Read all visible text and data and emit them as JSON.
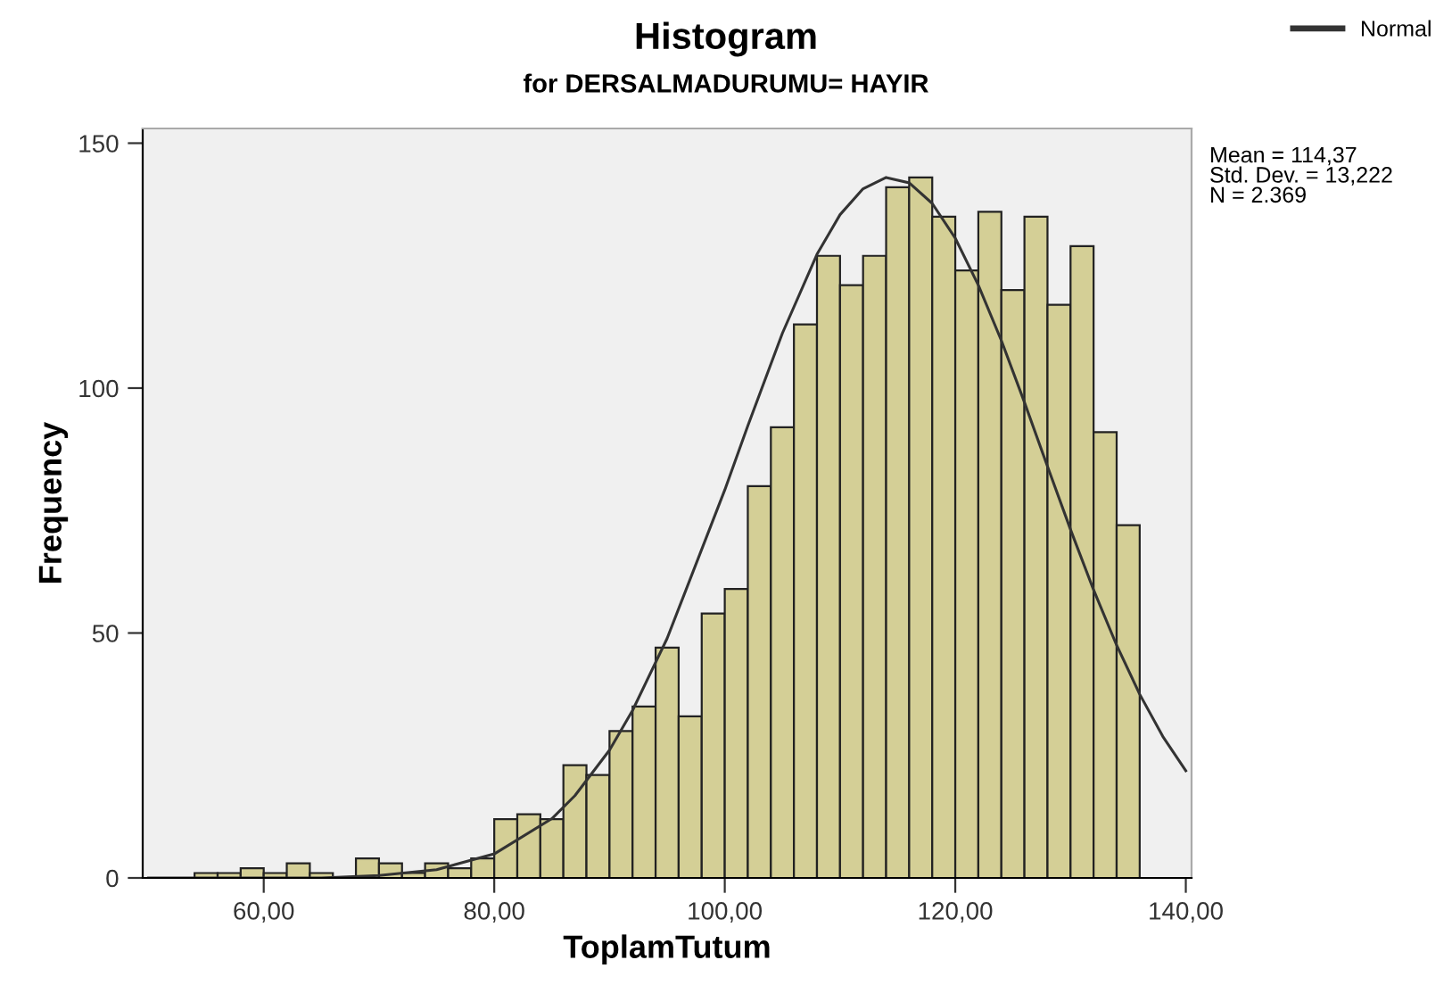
{
  "chart_data": {
    "type": "histogram",
    "title": "Histogram",
    "subtitle": "for DERSALMADURUMU= HAYIR",
    "xlabel": "ToplamTutum",
    "ylabel": "Frequency",
    "xlim": [
      49.5,
      140.5
    ],
    "ylim": [
      0,
      153
    ],
    "xticks": [
      {
        "value": 60,
        "label": "60,00"
      },
      {
        "value": 80,
        "label": "80,00"
      },
      {
        "value": 100,
        "label": "100,00"
      },
      {
        "value": 120,
        "label": "120,00"
      },
      {
        "value": 140,
        "label": "140,00"
      }
    ],
    "yticks": [
      0,
      50,
      100,
      150
    ],
    "grid": false,
    "legend": "top right",
    "annotations": [
      "Mean = 114,37",
      "Std. Dev. = 13,222",
      "N = 2.369"
    ],
    "series": [
      {
        "color": "#d4cf96",
        "bins": [
          54,
          56,
          58,
          60,
          62,
          64,
          66,
          68,
          70,
          72,
          74,
          76,
          78,
          80,
          82,
          84,
          86,
          88,
          90,
          92,
          94,
          96,
          98,
          100,
          102,
          104,
          106,
          108,
          110,
          112,
          114,
          116,
          118,
          120,
          122,
          124,
          126,
          128,
          130,
          132,
          134,
          136
        ],
        "values": [
          1,
          1,
          2,
          1,
          3,
          1,
          0,
          4,
          3,
          1,
          3,
          2,
          4,
          12,
          13,
          12,
          23,
          21,
          30,
          35,
          47,
          33,
          54,
          59,
          80,
          92,
          113,
          127,
          121,
          127,
          141,
          143,
          135,
          124,
          136,
          120,
          135,
          117,
          129,
          91,
          72
        ]
      },
      {
        "type": "line",
        "name": "Normal",
        "color": "#333333",
        "x": [
          50,
          60,
          65,
          70,
          75,
          80,
          85,
          87,
          90,
          92,
          95,
          100,
          102,
          105,
          108,
          110,
          112,
          114,
          116,
          118,
          120,
          122,
          124,
          126,
          128,
          130,
          132,
          134,
          136,
          138,
          140
        ],
        "values": [
          0,
          0,
          0,
          0.5,
          1.7,
          4.9,
          12.1,
          16.8,
          26.1,
          34.2,
          48.9,
          79.2,
          92.3,
          111.2,
          127.3,
          135.4,
          140.7,
          143,
          141.9,
          137.7,
          130.6,
          121,
          109.7,
          97.1,
          84,
          71.1,
          58.8,
          47.5,
          37.5,
          28.9,
          21.9
        ]
      }
    ]
  }
}
